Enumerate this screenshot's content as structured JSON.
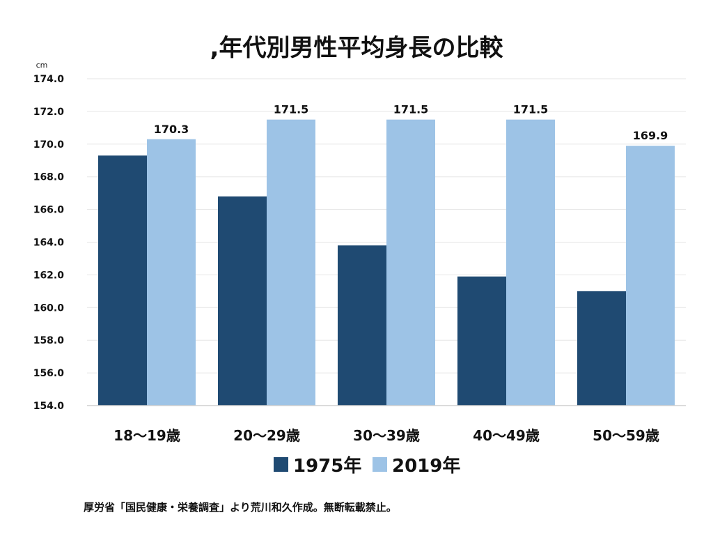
{
  "chart_data": {
    "type": "bar",
    "title": ",年代別男性平均身長の比較",
    "unit": "cm",
    "categories": [
      "18〜19歳",
      "20〜29歳",
      "30〜39歳",
      "40〜49歳",
      "50〜59歳"
    ],
    "series": [
      {
        "name": "1975年",
        "color": "#1f4a72",
        "values": [
          169.3,
          166.8,
          163.8,
          161.9,
          161.0
        ]
      },
      {
        "name": "2019年",
        "color": "#9dc3e6",
        "values": [
          170.3,
          171.5,
          171.5,
          171.5,
          169.9
        ],
        "data_labels": [
          "170.3",
          "171.5",
          "171.5",
          "171.5",
          "169.9"
        ]
      }
    ],
    "ylim": [
      154.0,
      174.0
    ],
    "yticks": [
      "154.0",
      "156.0",
      "158.0",
      "160.0",
      "162.0",
      "164.0",
      "166.0",
      "168.0",
      "170.0",
      "172.0",
      "174.0"
    ],
    "grid": true,
    "legend_position": "bottom"
  },
  "source_note": "厚労省「国民健康・栄養調査」より荒川和久作成。無断転載禁止。"
}
